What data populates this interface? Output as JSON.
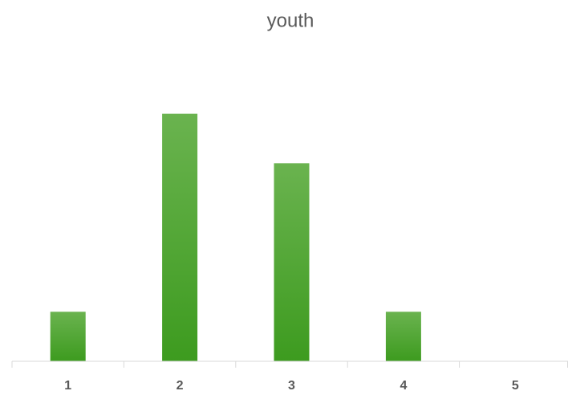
{
  "chart_data": {
    "type": "bar",
    "title": "youth",
    "categories": [
      "1",
      "2",
      "3",
      "4",
      "5"
    ],
    "values": [
      1,
      5,
      4,
      1,
      0
    ],
    "colors": [
      "#6ab34f",
      "#3d9b1f"
    ],
    "ylim": [
      0,
      6
    ],
    "grid": false
  }
}
